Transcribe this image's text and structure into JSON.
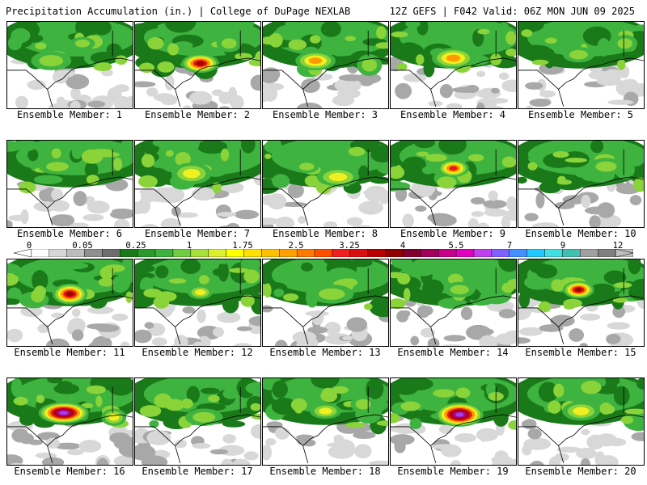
{
  "header": {
    "left_title": "Precipitation Accumulation (in.) | College of DuPage NEXLAB",
    "right_title": "12Z GEFS | F042 Valid: 06Z MON JUN 09 2025"
  },
  "panels": [
    {
      "member": 1,
      "label": "Ensemble Member: 1",
      "peak": 1.75,
      "blobs": [
        [
          0.35,
          0.45,
          0.32,
          0.22,
          0.6
        ],
        [
          0.6,
          0.25,
          0.2,
          0.15,
          0.2
        ]
      ]
    },
    {
      "member": 2,
      "label": "Ensemble Member: 2",
      "peak": 4.5,
      "blobs": [
        [
          0.52,
          0.48,
          0.3,
          0.22,
          0.8
        ],
        [
          0.75,
          0.25,
          0.2,
          0.2,
          0.3
        ]
      ]
    },
    {
      "member": 3,
      "label": "Ensemble Member: 3",
      "peak": 3.25,
      "blobs": [
        [
          0.42,
          0.45,
          0.32,
          0.22,
          0.7
        ],
        [
          0.85,
          0.5,
          0.2,
          0.25,
          0.3
        ]
      ]
    },
    {
      "member": 4,
      "label": "Ensemble Member: 4",
      "peak": 3.5,
      "blobs": [
        [
          0.5,
          0.42,
          0.34,
          0.24,
          0.7
        ]
      ]
    },
    {
      "member": 5,
      "label": "Ensemble Member: 5",
      "peak": 1.0,
      "blobs": [
        [
          0.48,
          0.38,
          0.25,
          0.18,
          0.4
        ],
        [
          0.85,
          0.25,
          0.2,
          0.2,
          0.25
        ]
      ]
    },
    {
      "member": 6,
      "label": "Ensemble Member: 6",
      "peak": 1.0,
      "blobs": [
        [
          0.4,
          0.3,
          0.3,
          0.18,
          0.45
        ]
      ]
    },
    {
      "member": 7,
      "label": "Ensemble Member: 7",
      "peak": 2.0,
      "blobs": [
        [
          0.45,
          0.38,
          0.32,
          0.25,
          0.6
        ]
      ]
    },
    {
      "member": 8,
      "label": "Ensemble Member: 8",
      "peak": 2.5,
      "blobs": [
        [
          0.6,
          0.42,
          0.34,
          0.22,
          0.6
        ],
        [
          0.35,
          0.3,
          0.2,
          0.15,
          0.3
        ]
      ]
    },
    {
      "member": 9,
      "label": "Ensemble Member: 9",
      "peak": 4.0,
      "blobs": [
        [
          0.5,
          0.32,
          0.25,
          0.2,
          0.7
        ]
      ]
    },
    {
      "member": 10,
      "label": "Ensemble Member: 10",
      "peak": 1.0,
      "blobs": [
        [
          0.7,
          0.3,
          0.28,
          0.2,
          0.35
        ]
      ]
    },
    {
      "member": 11,
      "label": "Ensemble Member: 11",
      "peak": 5.0,
      "blobs": [
        [
          0.5,
          0.4,
          0.28,
          0.24,
          0.8
        ]
      ]
    },
    {
      "member": 12,
      "label": "Ensemble Member: 12",
      "peak": 2.0,
      "blobs": [
        [
          0.52,
          0.38,
          0.2,
          0.16,
          0.55
        ]
      ]
    },
    {
      "member": 13,
      "label": "Ensemble Member: 13",
      "peak": 1.75,
      "blobs": [
        [
          0.55,
          0.4,
          0.35,
          0.22,
          0.5
        ]
      ]
    },
    {
      "member": 14,
      "label": "Ensemble Member: 14",
      "peak": 1.0,
      "blobs": [
        [
          0.55,
          0.35,
          0.25,
          0.18,
          0.4
        ]
      ]
    },
    {
      "member": 15,
      "label": "Ensemble Member: 15",
      "peak": 5.5,
      "blobs": [
        [
          0.48,
          0.35,
          0.25,
          0.2,
          0.8
        ]
      ]
    },
    {
      "member": 16,
      "label": "Ensemble Member: 16",
      "peak": 6.5,
      "blobs": [
        [
          0.45,
          0.4,
          0.4,
          0.25,
          0.85
        ],
        [
          0.85,
          0.45,
          0.2,
          0.2,
          0.3
        ]
      ]
    },
    {
      "member": 17,
      "label": "Ensemble Member: 17",
      "peak": 1.75,
      "blobs": [
        [
          0.55,
          0.45,
          0.3,
          0.2,
          0.45
        ]
      ]
    },
    {
      "member": 18,
      "label": "Ensemble Member: 18",
      "peak": 2.0,
      "blobs": [
        [
          0.5,
          0.38,
          0.25,
          0.18,
          0.5
        ],
        [
          0.8,
          0.3,
          0.2,
          0.2,
          0.3
        ]
      ]
    },
    {
      "member": 19,
      "label": "Ensemble Member: 19",
      "peak": 6.0,
      "blobs": [
        [
          0.55,
          0.42,
          0.38,
          0.28,
          0.85
        ]
      ]
    },
    {
      "member": 20,
      "label": "Ensemble Member: 20",
      "peak": 2.5,
      "blobs": [
        [
          0.5,
          0.38,
          0.3,
          0.22,
          0.6
        ]
      ]
    }
  ],
  "colorbar": {
    "tick_labels": [
      "0",
      "0.05",
      "0.25",
      "1",
      "1.75",
      "2.5",
      "3.25",
      "4",
      "5.5",
      "7",
      "9",
      "12"
    ],
    "colors": [
      "#ffffff",
      "#d7d7d7",
      "#bdbdbd",
      "#8f8f8f",
      "#6e6e6e",
      "#1a7a1a",
      "#2a9a2a",
      "#3fb33f",
      "#6fcd3f",
      "#a8e03a",
      "#dcf030",
      "#ffff00",
      "#ffe000",
      "#ffc000",
      "#ffa000",
      "#ff7800",
      "#ff5000",
      "#f02020",
      "#d81010",
      "#b80000",
      "#900000",
      "#800030",
      "#a0005a",
      "#c8008c",
      "#e000c0",
      "#c040f0",
      "#8060ff",
      "#4090ff",
      "#20c8ff",
      "#40e0e0",
      "#40c0b0",
      "#a0a0a0",
      "#808080",
      "#c0c0c0"
    ]
  },
  "map": {
    "fill_colors": {
      "light_gray": "#d8d8d8",
      "mid_gray": "#a8a8a8",
      "dark_green": "#1a7a1a",
      "green": "#3fb33f",
      "light_green": "#8ad43a",
      "yellow": "#f0f020",
      "orange": "#ff9a00",
      "red": "#e81818",
      "dark_red": "#a00000",
      "magenta": "#b0008c",
      "purple": "#a040f0",
      "cyan": "#40e0ff"
    },
    "border_color": "#000000"
  }
}
